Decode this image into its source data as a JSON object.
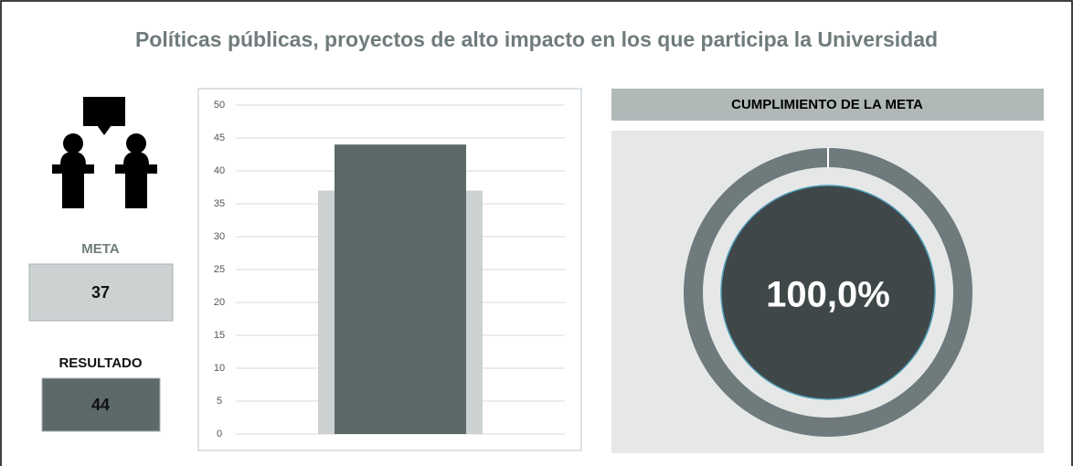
{
  "title": "Políticas públicas, proyectos de alto impacto en los que participa la Universidad",
  "meta": {
    "label": "META",
    "value": 37
  },
  "resultado": {
    "label": "RESULTADO",
    "value": 44
  },
  "chart_data": [
    {
      "type": "bar",
      "series": [
        {
          "color": "#ccd1d2",
          "values": [
            37
          ]
        },
        {
          "color": "#5d6869",
          "values": [
            44
          ]
        }
      ],
      "ylim": [
        0,
        50
      ],
      "yticks": [
        0,
        5,
        10,
        15,
        20,
        25,
        30,
        35,
        40,
        45,
        50
      ],
      "grid": true
    },
    {
      "type": "donut",
      "title": "CUMPLIMIENTO DE LA META",
      "values": [
        100
      ],
      "value_labels": [
        "100,0%"
      ],
      "color": "#6e7a7b"
    }
  ]
}
